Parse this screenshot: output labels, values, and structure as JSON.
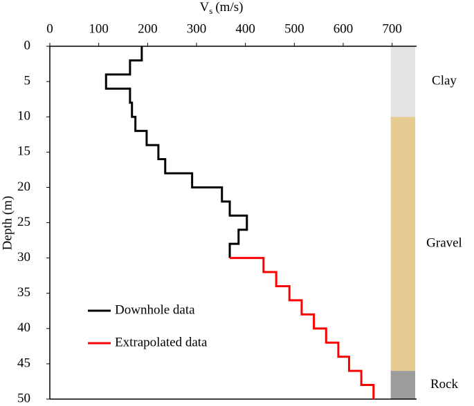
{
  "chart_data": {
    "type": "line",
    "x_label": {
      "symbol": "V",
      "subscript": "s",
      "unit": "(m/s)"
    },
    "y_label": "Depth (m)",
    "xlim": [
      0,
      750
    ],
    "xticks": [
      0,
      100,
      200,
      300,
      400,
      500,
      600,
      700
    ],
    "ylim": [
      0,
      50
    ],
    "yticks": [
      0,
      5,
      10,
      15,
      20,
      25,
      30,
      35,
      40,
      45,
      50
    ],
    "invert_y": true,
    "series": [
      {
        "name": "Downhole data",
        "color": "#000000",
        "x": [
          188,
          188,
          164,
          164,
          115,
          115,
          164,
          164,
          168,
          168,
          175,
          175,
          198,
          198,
          222,
          222,
          236,
          236,
          291,
          291,
          352,
          352,
          368,
          368,
          403,
          403,
          386,
          386,
          368,
          368
        ],
        "values": [
          0,
          2,
          2,
          4,
          4,
          6,
          6,
          8,
          8,
          10,
          10,
          12,
          12,
          14,
          14,
          16,
          16,
          18,
          18,
          20,
          20,
          22,
          22,
          24,
          24,
          26,
          26,
          28,
          28,
          30
        ]
      },
      {
        "name": "Extrapolated data",
        "color": "#ff0000",
        "x": [
          368,
          437,
          437,
          463,
          463,
          490,
          490,
          515,
          515,
          540,
          540,
          565,
          565,
          590,
          590,
          612,
          612,
          637,
          637,
          662,
          662
        ],
        "values": [
          30,
          30,
          32,
          32,
          34,
          34,
          36,
          36,
          38,
          38,
          40,
          40,
          42,
          42,
          44,
          44,
          46,
          46,
          48,
          48,
          50
        ]
      }
    ],
    "layers": [
      {
        "name": "Clay",
        "top": 0,
        "bottom": 10,
        "color": "#e4e4e4"
      },
      {
        "name": "Gravel",
        "top": 10,
        "bottom": 46,
        "color": "#e6cc92"
      },
      {
        "name": "Rock",
        "top": 46,
        "bottom": 50,
        "color": "#9c9c9c"
      }
    ],
    "column_x": [
      700,
      750
    ]
  }
}
